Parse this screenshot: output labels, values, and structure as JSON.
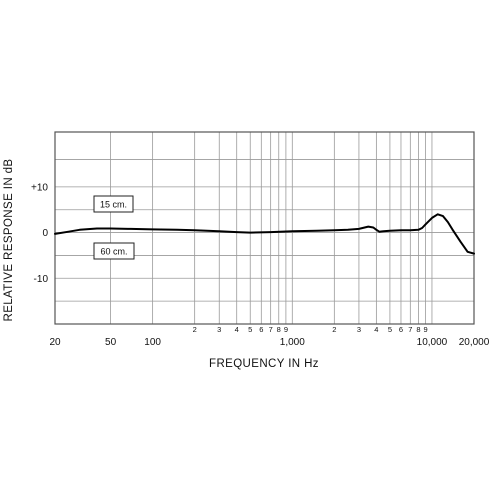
{
  "chart_data": {
    "type": "line",
    "title": "",
    "xlabel": "FREQUENCY IN Hz",
    "ylabel": "RELATIVE RESPONSE IN dB",
    "x_scale": "log",
    "xlim": [
      20,
      20000
    ],
    "ylim": [
      -20,
      22
    ],
    "grid": true,
    "x_ticks": [
      {
        "value": 20,
        "label": "20"
      },
      {
        "value": 50,
        "label": "50"
      },
      {
        "value": 100,
        "label": "100"
      },
      {
        "value": 200,
        "label": "2"
      },
      {
        "value": 300,
        "label": "3"
      },
      {
        "value": 400,
        "label": "4"
      },
      {
        "value": 500,
        "label": "5"
      },
      {
        "value": 600,
        "label": "6"
      },
      {
        "value": 700,
        "label": "7"
      },
      {
        "value": 800,
        "label": "8"
      },
      {
        "value": 900,
        "label": "9"
      },
      {
        "value": 1000,
        "label": "1,000"
      },
      {
        "value": 2000,
        "label": "2"
      },
      {
        "value": 3000,
        "label": "3"
      },
      {
        "value": 4000,
        "label": "4"
      },
      {
        "value": 5000,
        "label": "5"
      },
      {
        "value": 6000,
        "label": "6"
      },
      {
        "value": 7000,
        "label": "7"
      },
      {
        "value": 8000,
        "label": "8"
      },
      {
        "value": 9000,
        "label": "9"
      },
      {
        "value": 10000,
        "label": "10,000"
      },
      {
        "value": 20000,
        "label": "20,000"
      }
    ],
    "y_ticks": [
      {
        "value": 10,
        "label": "+10"
      },
      {
        "value": 0,
        "label": "0"
      },
      {
        "value": -10,
        "label": "-10"
      }
    ],
    "y_gridlines": [
      22,
      16,
      10,
      5,
      0,
      -5,
      -10,
      -15,
      -20
    ],
    "annotations": [
      {
        "text": "15 cm.",
        "position": "above curve, left"
      },
      {
        "text": "60 cm.",
        "position": "below curve, left"
      }
    ],
    "series": [
      {
        "x": [
          20,
          25,
          30,
          40,
          50,
          70,
          100,
          150,
          200,
          300,
          400,
          500,
          700,
          1000,
          1500,
          2000,
          2500,
          3000,
          3500,
          3800,
          4000,
          4200,
          4500,
          5000,
          6000,
          7000,
          8000,
          8500,
          9000,
          10000,
          11000,
          12000,
          13000,
          14000,
          16000,
          18000,
          20000
        ],
        "y": [
          -0.3,
          0.2,
          0.6,
          0.9,
          0.9,
          0.8,
          0.7,
          0.6,
          0.5,
          0.3,
          0.1,
          0.0,
          0.1,
          0.3,
          0.4,
          0.5,
          0.6,
          0.8,
          1.3,
          1.1,
          0.6,
          0.2,
          0.3,
          0.4,
          0.5,
          0.5,
          0.6,
          1.0,
          1.8,
          3.2,
          4.0,
          3.6,
          2.3,
          0.7,
          -2.0,
          -4.2,
          -4.6
        ]
      }
    ]
  }
}
